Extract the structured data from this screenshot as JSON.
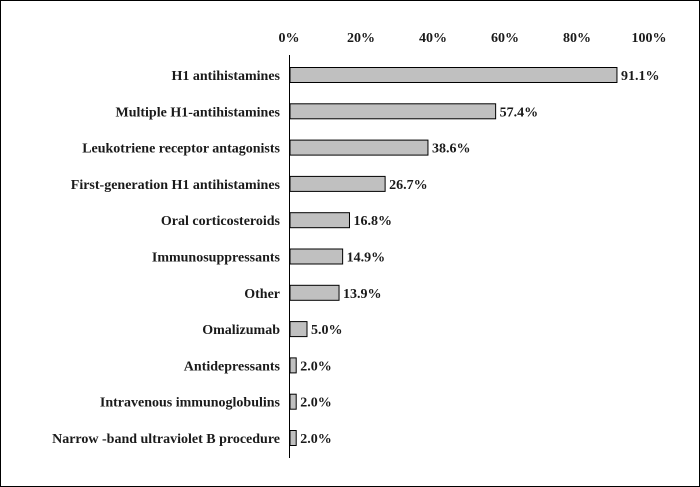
{
  "chart_data": {
    "type": "bar",
    "orientation": "horizontal",
    "categories": [
      "H1 antihistamines",
      "Multiple H1-antihistamines",
      "Leukotriene receptor antagonists",
      "First-generation H1 antihistamines",
      "Oral corticosteroids",
      "Immunosuppressants",
      "Other",
      "Omalizumab",
      "Antidepressants",
      "Intravenous immunoglobulins",
      "Narrow -band ultraviolet B procedure"
    ],
    "values": [
      91.1,
      57.4,
      38.6,
      26.7,
      16.8,
      14.9,
      13.9,
      5.0,
      2.0,
      2.0,
      2.0
    ],
    "value_labels": [
      "91.1%",
      "57.4%",
      "38.6%",
      "26.7%",
      "16.8%",
      "14.9%",
      "13.9%",
      "5.0%",
      "2.0%",
      "2.0%",
      "2.0%"
    ],
    "xlim": [
      0,
      100
    ],
    "xticks": [
      0,
      20,
      40,
      60,
      80,
      100
    ],
    "xtick_labels": [
      "0%",
      "20%",
      "40%",
      "60%",
      "80%",
      "100%"
    ],
    "x_axis_position": "top",
    "grid": false,
    "legend": "none",
    "bar_color": "#c0c0c0",
    "bar_edge_color": "#000000"
  }
}
